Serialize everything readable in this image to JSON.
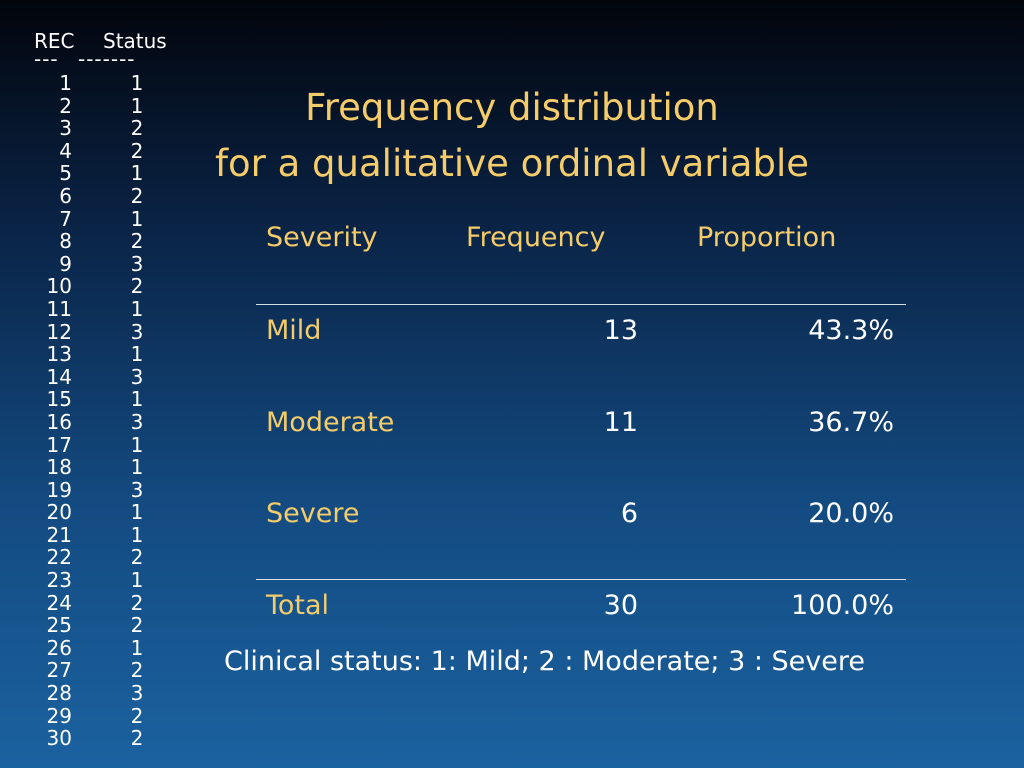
{
  "raw": {
    "header_rec": "REC",
    "header_status": "Status",
    "dashes_rec": "---",
    "dashes_status": "-------",
    "rows": [
      {
        "rec": "1",
        "status": "1"
      },
      {
        "rec": "2",
        "status": "1"
      },
      {
        "rec": "3",
        "status": "2"
      },
      {
        "rec": "4",
        "status": "2"
      },
      {
        "rec": "5",
        "status": "1"
      },
      {
        "rec": "6",
        "status": "2"
      },
      {
        "rec": "7",
        "status": "1"
      },
      {
        "rec": "8",
        "status": "2"
      },
      {
        "rec": "9",
        "status": "3"
      },
      {
        "rec": "10",
        "status": "2"
      },
      {
        "rec": "11",
        "status": "1"
      },
      {
        "rec": "12",
        "status": "3"
      },
      {
        "rec": "13",
        "status": "1"
      },
      {
        "rec": "14",
        "status": "3"
      },
      {
        "rec": "15",
        "status": "1"
      },
      {
        "rec": "16",
        "status": "3"
      },
      {
        "rec": "17",
        "status": "1"
      },
      {
        "rec": "18",
        "status": "1"
      },
      {
        "rec": "19",
        "status": "3"
      },
      {
        "rec": "20",
        "status": "1"
      },
      {
        "rec": "21",
        "status": "1"
      },
      {
        "rec": "22",
        "status": "2"
      },
      {
        "rec": "23",
        "status": "1"
      },
      {
        "rec": "24",
        "status": "2"
      },
      {
        "rec": "25",
        "status": "2"
      },
      {
        "rec": "26",
        "status": "1"
      },
      {
        "rec": "27",
        "status": "2"
      },
      {
        "rec": "28",
        "status": "3"
      },
      {
        "rec": "29",
        "status": "2"
      },
      {
        "rec": "30",
        "status": "2"
      }
    ]
  },
  "title": {
    "line1": "Frequency distribution",
    "line2": "for a qualitative ordinal variable"
  },
  "table": {
    "headers": [
      "Severity",
      "Frequency",
      "Proportion"
    ],
    "rows": [
      {
        "label": "Mild",
        "frequency": "13",
        "proportion": "43.3%"
      },
      {
        "label": "Moderate",
        "frequency": "11",
        "proportion": "36.7%"
      },
      {
        "label": "Severe",
        "frequency": "6",
        "proportion": "20.0%"
      }
    ],
    "total": {
      "label": "Total",
      "frequency": "30",
      "proportion": "100.0%"
    }
  },
  "note": "Clinical status: 1: Mild; 2 : Moderate; 3 : Severe",
  "colors": {
    "title": "#f4cc6a",
    "text": "#ffffff",
    "background_top": "#02050c",
    "background_bottom": "#1b62a0"
  }
}
